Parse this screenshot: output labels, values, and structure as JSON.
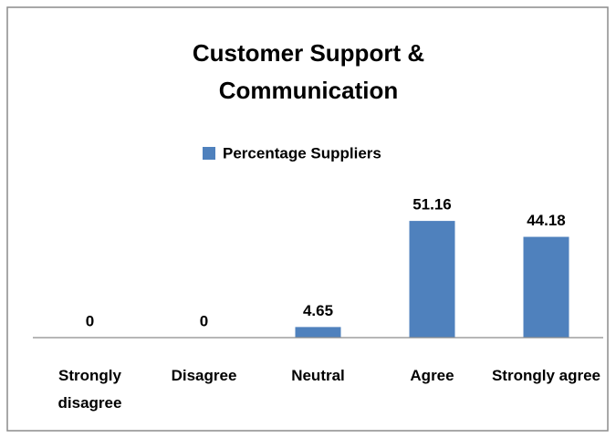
{
  "chart_data": {
    "type": "bar",
    "title": [
      "Customer Support &",
      "Communication"
    ],
    "categories": [
      "Strongly disagree",
      "Disagree",
      "Neutral",
      "Agree",
      "Strongly agree"
    ],
    "series": [
      {
        "name": "Percentage Suppliers",
        "color": "#4f81bd",
        "values": [
          0,
          0,
          4.65,
          51.16,
          44.18
        ]
      }
    ],
    "ylim": [
      0,
      60
    ]
  }
}
